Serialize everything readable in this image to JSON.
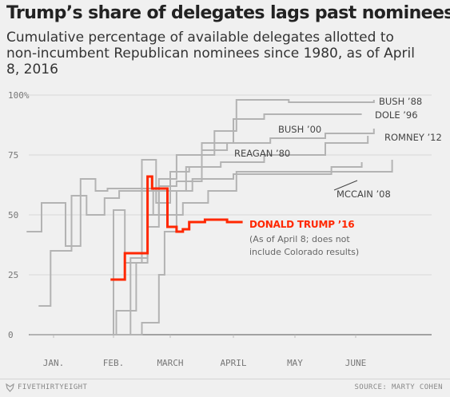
{
  "header": {
    "title": "Trump’s share of delegates lags past nominees’",
    "subtitle": "Cumulative percentage of available delegates allotted to non-incumbent Republican nominees since 1980, as of April 8, 2016"
  },
  "footer": {
    "brand": "FIVETHIRTYEIGHT",
    "source": "SOURCE: MARTY COHEN",
    "logo_icon": "fivethirtyeight-fox-icon"
  },
  "chart_data": {
    "type": "line",
    "x_ticks": [
      "JAN.",
      "FEB.",
      "MARCH",
      "APRIL",
      "MAY",
      "JUNE"
    ],
    "y_ticks": [
      "100%",
      "75",
      "50",
      "25",
      "0"
    ],
    "ylim": [
      0,
      100
    ],
    "xlim_months": [
      0.55,
      6.6
    ],
    "grid": true,
    "colors": {
      "gray": "#b3b3b3",
      "highlight": "#ff2700"
    },
    "series": [
      {
        "name": "BUSH ’88",
        "points": [
          [
            1.9,
            0
          ],
          [
            2.05,
            0
          ],
          [
            2.05,
            10
          ],
          [
            2.4,
            10
          ],
          [
            2.4,
            30
          ],
          [
            2.6,
            30
          ],
          [
            2.6,
            45
          ],
          [
            2.8,
            45
          ],
          [
            2.8,
            65
          ],
          [
            3.1,
            65
          ],
          [
            3.1,
            75
          ],
          [
            3.7,
            75
          ],
          [
            3.7,
            85
          ],
          [
            4.05,
            85
          ],
          [
            4.05,
            98
          ],
          [
            4.9,
            98
          ],
          [
            4.9,
            97
          ],
          [
            6.3,
            97
          ],
          [
            6.3,
            98
          ]
        ]
      },
      {
        "name": "DOLE ’96",
        "points": [
          [
            2.2,
            0
          ],
          [
            2.5,
            0
          ],
          [
            2.5,
            5
          ],
          [
            2.8,
            5
          ],
          [
            2.8,
            25
          ],
          [
            2.9,
            25
          ],
          [
            2.9,
            43
          ],
          [
            3.1,
            43
          ],
          [
            3.1,
            60
          ],
          [
            3.25,
            60
          ],
          [
            3.25,
            70
          ],
          [
            3.5,
            70
          ],
          [
            3.5,
            80
          ],
          [
            4.0,
            80
          ],
          [
            4.0,
            90
          ],
          [
            4.5,
            90
          ],
          [
            4.5,
            92
          ],
          [
            6.1,
            92
          ]
        ]
      },
      {
        "name": "BUSH ’00",
        "points": [
          [
            1.7,
            0
          ],
          [
            2.3,
            0
          ],
          [
            2.3,
            32
          ],
          [
            2.6,
            32
          ],
          [
            2.6,
            50
          ],
          [
            2.8,
            50
          ],
          [
            2.8,
            62
          ],
          [
            3.1,
            62
          ],
          [
            3.1,
            64
          ],
          [
            3.5,
            64
          ],
          [
            3.5,
            77
          ],
          [
            3.9,
            77
          ],
          [
            3.9,
            80
          ],
          [
            4.6,
            80
          ],
          [
            4.6,
            82
          ],
          [
            5.5,
            82
          ],
          [
            5.5,
            84
          ],
          [
            6.3,
            84
          ],
          [
            6.3,
            86
          ]
        ]
      },
      {
        "name": "REAGAN ’80",
        "points": [
          [
            0.6,
            0
          ],
          [
            2.0,
            0
          ],
          [
            2.0,
            52
          ],
          [
            2.2,
            52
          ],
          [
            2.2,
            30
          ],
          [
            2.5,
            30
          ],
          [
            2.5,
            73
          ],
          [
            2.75,
            73
          ],
          [
            2.75,
            55
          ],
          [
            3.0,
            55
          ],
          [
            3.0,
            68
          ],
          [
            3.3,
            68
          ],
          [
            3.3,
            70
          ],
          [
            3.8,
            70
          ],
          [
            3.8,
            72
          ],
          [
            4.5,
            72
          ],
          [
            4.5,
            75
          ],
          [
            5.5,
            75
          ],
          [
            5.5,
            80
          ],
          [
            6.2,
            80
          ],
          [
            6.2,
            83
          ]
        ]
      },
      {
        "name": "ROMNEY ’12",
        "points": [
          [
            0.55,
            43
          ],
          [
            0.8,
            43
          ],
          [
            0.8,
            55
          ],
          [
            1.2,
            55
          ],
          [
            1.2,
            37
          ],
          [
            1.45,
            37
          ],
          [
            1.45,
            65
          ],
          [
            1.7,
            65
          ],
          [
            1.7,
            60
          ],
          [
            1.9,
            60
          ],
          [
            1.9,
            61
          ],
          [
            2.7,
            61
          ],
          [
            2.7,
            50
          ],
          [
            3.2,
            50
          ],
          [
            3.2,
            55
          ],
          [
            3.6,
            55
          ],
          [
            3.6,
            60
          ],
          [
            4.05,
            60
          ],
          [
            4.05,
            68
          ],
          [
            6.6,
            68
          ],
          [
            6.6,
            73
          ]
        ]
      },
      {
        "name": "MCCAIN ’08",
        "points": [
          [
            0.75,
            12
          ],
          [
            0.95,
            12
          ],
          [
            0.95,
            35
          ],
          [
            1.3,
            35
          ],
          [
            1.3,
            58
          ],
          [
            1.55,
            58
          ],
          [
            1.55,
            50
          ],
          [
            1.85,
            50
          ],
          [
            1.85,
            57
          ],
          [
            2.1,
            57
          ],
          [
            2.1,
            60
          ],
          [
            3.35,
            60
          ],
          [
            3.35,
            65
          ],
          [
            4.0,
            65
          ],
          [
            4.0,
            67
          ],
          [
            5.6,
            67
          ],
          [
            5.6,
            70
          ],
          [
            6.1,
            70
          ],
          [
            6.1,
            72
          ]
        ]
      },
      {
        "name": "DONALD TRUMP ’16",
        "highlight": true,
        "points": [
          [
            1.95,
            23
          ],
          [
            2.2,
            23
          ],
          [
            2.2,
            34
          ],
          [
            2.6,
            34
          ],
          [
            2.6,
            66
          ],
          [
            2.68,
            66
          ],
          [
            2.68,
            61
          ],
          [
            2.95,
            61
          ],
          [
            2.95,
            45
          ],
          [
            3.1,
            45
          ],
          [
            3.1,
            43
          ],
          [
            3.2,
            43
          ],
          [
            3.2,
            44
          ],
          [
            3.3,
            44
          ],
          [
            3.3,
            47
          ],
          [
            3.55,
            47
          ],
          [
            3.55,
            48
          ],
          [
            3.9,
            48
          ],
          [
            3.9,
            47
          ],
          [
            4.15,
            47
          ]
        ]
      }
    ],
    "labels": [
      {
        "text": "BUSH ’88",
        "series": "BUSH ’88"
      },
      {
        "text": "DOLE ’96",
        "series": "DOLE ’96"
      },
      {
        "text": "BUSH ’00",
        "series": "BUSH ’00"
      },
      {
        "text": "REAGAN ’80",
        "series": "REAGAN ’80"
      },
      {
        "text": "ROMNEY ’12",
        "series": "ROMNEY ’12"
      },
      {
        "text": "MCCAIN ’08",
        "series": "MCCAIN ’08"
      },
      {
        "text": "DONALD TRUMP ’16",
        "series": "DONALD TRUMP ’16"
      }
    ],
    "annotation": [
      "(As of April 8; does not",
      "include Colorado results)"
    ]
  }
}
